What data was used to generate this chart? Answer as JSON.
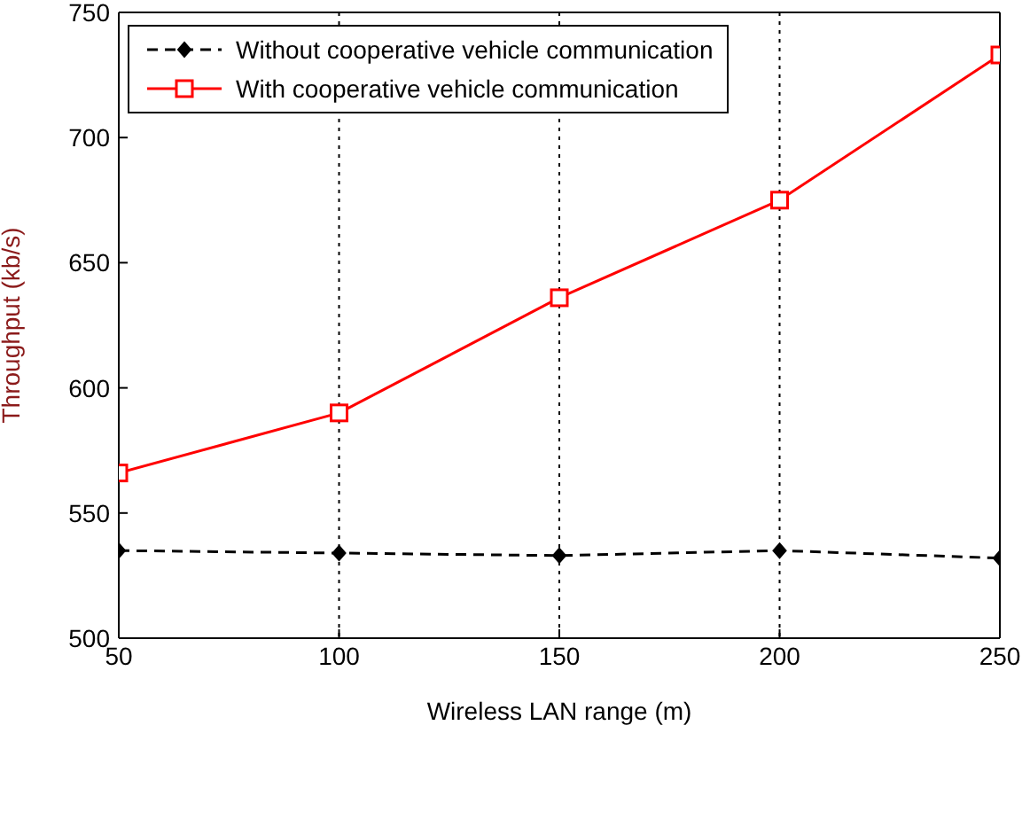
{
  "chart_data": {
    "type": "line",
    "xlabel": "Wireless LAN range (m)",
    "ylabel": "Throughput (kb/s)",
    "x": [
      50,
      100,
      150,
      200,
      250
    ],
    "series": [
      {
        "name": "Without cooperative vehicle communication",
        "color": "#000000",
        "values": [
          535,
          534,
          533,
          535,
          532
        ],
        "marker": "diamond",
        "line_style": "dashed"
      },
      {
        "name": "With cooperative vehicle communication",
        "color": "#ff0000",
        "values": [
          566,
          590,
          636,
          675,
          733
        ],
        "marker": "square",
        "line_style": "solid"
      }
    ],
    "xlim": [
      50,
      250
    ],
    "xticks": [
      50,
      100,
      150,
      200,
      250
    ],
    "ylim": [
      500,
      750
    ],
    "yticks": [
      500,
      550,
      600,
      650,
      700,
      750
    ],
    "grid": "x",
    "legend": "top left"
  }
}
